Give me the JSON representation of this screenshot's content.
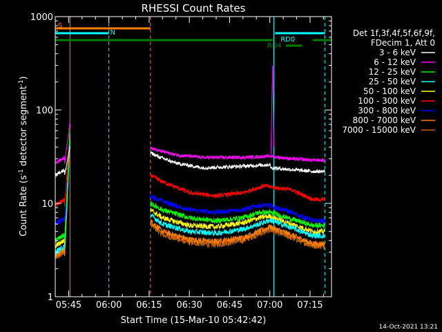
{
  "footer": {
    "timestamp": "14-Oct-2021 13:21"
  },
  "chart_data": {
    "type": "line",
    "title": "RHESSI Count Rates",
    "xlabel": "Start Time (15-Mar-10 05:42:42)",
    "ylabel_prefix": "Count Rate (s",
    "ylabel_sup1": "-1",
    "ylabel_mid": " detector segment",
    "ylabel_sup2": "-1",
    "ylabel_suffix": ")",
    "y_scale": "log",
    "ylim": [
      1,
      1000
    ],
    "xlim_minutes_after_0540": [
      0,
      103
    ],
    "x_ticks": [
      {
        "label": "05:45",
        "min": 5
      },
      {
        "label": "06:00",
        "min": 20
      },
      {
        "label": "06:15",
        "min": 35
      },
      {
        "label": "06:30",
        "min": 50
      },
      {
        "label": "06:45",
        "min": 65
      },
      {
        "label": "07:00",
        "min": 80
      },
      {
        "label": "07:15",
        "min": 95
      }
    ],
    "y_ticks": [
      {
        "label": "1",
        "value": 1
      },
      {
        "label": "10",
        "value": 10
      },
      {
        "label": "100",
        "value": 100
      },
      {
        "label": "1000",
        "value": 1000
      }
    ],
    "legend": {
      "header_line1": "Det 1f,3f,4f,5f,6f,9f,",
      "header_line2": "FDecim 1, Att 0",
      "position": "right"
    },
    "series": [
      {
        "name": "3 - 6 keV",
        "color": "#ffffff"
      },
      {
        "name": "6 - 12 keV",
        "color": "#ff00ff"
      },
      {
        "name": "12 - 25 keV",
        "color": "#00ff00"
      },
      {
        "name": "25 - 50 keV",
        "color": "#00ffff"
      },
      {
        "name": "50 - 100 keV",
        "color": "#ffff00"
      },
      {
        "name": "100 - 300 keV",
        "color": "#ff0000"
      },
      {
        "name": "300 - 800 keV",
        "color": "#0000ff"
      },
      {
        "name": "800 - 7000 keV",
        "color": "#ff8000"
      },
      {
        "name": "7000 - 15000 keV",
        "color": "#c06000"
      }
    ],
    "series_profiles": [
      {
        "s1": 20,
        "s1e": 24,
        "flare": 40,
        "p": [
          [
            35.5,
            35
          ],
          [
            38,
            32
          ],
          [
            45,
            27
          ],
          [
            55,
            24
          ],
          [
            70,
            25
          ],
          [
            80,
            26
          ],
          [
            80.5,
            24
          ],
          [
            88,
            23
          ],
          [
            96,
            22
          ]
        ]
      },
      {
        "s1": 27,
        "s1e": 30,
        "flare": 75,
        "p": [
          [
            35.5,
            40
          ],
          [
            38,
            37
          ],
          [
            45,
            33
          ],
          [
            55,
            31
          ],
          [
            70,
            31
          ],
          [
            80,
            32
          ],
          [
            88,
            30
          ],
          [
            96,
            29
          ]
        ]
      },
      {
        "s1": 4,
        "s1e": 40,
        "flare": 60,
        "p": [
          [
            35.5,
            10
          ],
          [
            40,
            8.5
          ],
          [
            50,
            7
          ],
          [
            60,
            6.5
          ],
          [
            70,
            7
          ],
          [
            76,
            8
          ],
          [
            80,
            8
          ],
          [
            88,
            6.8
          ],
          [
            96,
            5.8
          ]
        ]
      },
      {
        "s1": 3,
        "s1e": 40,
        "flare": 55,
        "p": [
          [
            35.5,
            7.5
          ],
          [
            40,
            6
          ],
          [
            50,
            5
          ],
          [
            60,
            4.8
          ],
          [
            70,
            5.3
          ],
          [
            76,
            6
          ],
          [
            80,
            6.6
          ],
          [
            88,
            5.5
          ],
          [
            96,
            4.5
          ]
        ]
      },
      {
        "s1": 3.5,
        "s1e": 45,
        "flare": 55,
        "p": [
          [
            35.5,
            8.5
          ],
          [
            40,
            7
          ],
          [
            50,
            5.8
          ],
          [
            60,
            5.6
          ],
          [
            70,
            6.2
          ],
          [
            76,
            7
          ],
          [
            80,
            7.3
          ],
          [
            88,
            6
          ],
          [
            96,
            5
          ]
        ]
      },
      {
        "s1": 9.5,
        "s1e": 12,
        "flare": 60,
        "p": [
          [
            35.5,
            20
          ],
          [
            40,
            17
          ],
          [
            50,
            13
          ],
          [
            60,
            12
          ],
          [
            70,
            13
          ],
          [
            78,
            15.5
          ],
          [
            80,
            15
          ],
          [
            88,
            14
          ],
          [
            96,
            11
          ]
        ]
      },
      {
        "s1": 6,
        "s1e": 45,
        "flare": 55,
        "p": [
          [
            35.5,
            12
          ],
          [
            40,
            10.5
          ],
          [
            50,
            8.5
          ],
          [
            60,
            8
          ],
          [
            70,
            8.6
          ],
          [
            76,
            9.5
          ],
          [
            80,
            9.5
          ],
          [
            88,
            8
          ],
          [
            96,
            6.5
          ]
        ]
      },
      {
        "s1": 2.8,
        "s1e": 38,
        "flare": 50,
        "p": [
          [
            35.5,
            6.5
          ],
          [
            40,
            5
          ],
          [
            50,
            4.1
          ],
          [
            60,
            3.9
          ],
          [
            70,
            4.3
          ],
          [
            76,
            5
          ],
          [
            80,
            5.6
          ],
          [
            88,
            4.6
          ],
          [
            96,
            3.7
          ]
        ]
      },
      {
        "s1": 2.6,
        "s1e": 30,
        "flare": 45,
        "p": [
          [
            35.5,
            6
          ],
          [
            40,
            4.6
          ],
          [
            50,
            3.8
          ],
          [
            60,
            3.6
          ],
          [
            70,
            4
          ],
          [
            76,
            4.7
          ],
          [
            80,
            5.2
          ],
          [
            88,
            4.3
          ],
          [
            96,
            3.5
          ]
        ]
      }
    ],
    "flare_peak": {
      "series": "6 - 12 keV",
      "min": 81,
      "value": 300
    },
    "vertical_markers": [
      {
        "min": 0,
        "color": "#00ffff",
        "style": "solid"
      },
      {
        "min": 20,
        "color": "#00ffff",
        "style": "dashed"
      },
      {
        "min": 81.5,
        "color": "#00ffff",
        "style": "solid"
      },
      {
        "min": 100.5,
        "color": "#00ffff",
        "style": "dashed"
      },
      {
        "min": 5.5,
        "color": "#ff8000",
        "style": "solid"
      },
      {
        "min": 35.5,
        "color": "#ff8000",
        "style": "dashed"
      }
    ],
    "flag_bars": [
      {
        "label": "S",
        "color": "#ff8000",
        "start_min": 0,
        "end_min": 35.5,
        "level": 1
      },
      {
        "label": "N",
        "color": "#00ffff",
        "start_min": 0,
        "end_min": 20,
        "level": 2
      },
      {
        "label": "",
        "color": "#00ffff",
        "start_min": 82,
        "end_min": 100.5,
        "level": 2
      },
      {
        "label": "",
        "color": "#008000",
        "start_min": 0,
        "end_min": 81,
        "level": 3
      },
      {
        "label": "",
        "color": "#008000",
        "start_min": 96,
        "end_min": 103,
        "level": 3
      },
      {
        "label": "RD4",
        "color": "#008000",
        "start_min": 86,
        "end_min": 92,
        "level": 4
      }
    ],
    "flag_labels": [
      {
        "text": "S",
        "color": "#ff8000",
        "min": 1
      },
      {
        "text": "N",
        "color": "#00ffff",
        "min": 20.5
      },
      {
        "text": "RD0",
        "color": "#00ffff",
        "min": 84
      },
      {
        "text": "RD4",
        "color": "#008000",
        "min": 79
      }
    ]
  }
}
